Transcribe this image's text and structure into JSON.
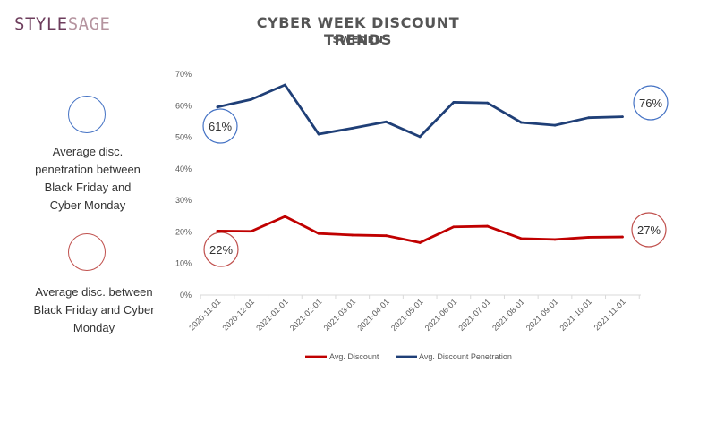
{
  "logo": {
    "part1": "STYLE",
    "part2": "SAGE"
  },
  "chart_data": {
    "type": "line",
    "title": "CYBER WEEK DISCOUNT TRENDS",
    "subtitle": "SWEDEN",
    "categories": [
      "2020-11-01",
      "2020-12-01",
      "2021-01-01",
      "2021-02-01",
      "2021-03-01",
      "2021-04-01",
      "2021-05-01",
      "2021-06-01",
      "2021-07-01",
      "2021-08-01",
      "2021-09-01",
      "2021-10-01",
      "2021-11-01"
    ],
    "ylim": [
      0,
      70
    ],
    "yticks": [
      "0%",
      "10%",
      "20%",
      "30%",
      "40%",
      "50%",
      "60%",
      "70%"
    ],
    "grid": false,
    "legend_placement": "bottom",
    "series": [
      {
        "name": "Avg. Discount",
        "color": "#c00000",
        "values": [
          20.3,
          20.2,
          24.9,
          19.5,
          19.0,
          18.8,
          16.6,
          21.6,
          21.8,
          17.9,
          17.6,
          18.3,
          18.4
        ]
      },
      {
        "name": "Avg. Discount Penetration",
        "color": "#1f3f77",
        "values": [
          59.6,
          62.0,
          66.6,
          51.0,
          52.9,
          54.9,
          50.2,
          61.1,
          60.9,
          54.7,
          53.8,
          56.2,
          56.5
        ]
      }
    ],
    "annotations": [
      {
        "text": "61%",
        "series": "Avg. Discount Penetration",
        "color": "#4472c4"
      },
      {
        "text": "76%",
        "series": "Avg. Discount Penetration",
        "color": "#4472c4"
      },
      {
        "text": "22%",
        "series": "Avg. Discount",
        "color": "#c0504d"
      },
      {
        "text": "27%",
        "series": "Avg. Discount",
        "color": "#c0504d"
      }
    ]
  },
  "side_legend": [
    {
      "text": "Average disc. penetration between Black Friday and Cyber Monday",
      "color": "#4472c4"
    },
    {
      "text": "Average disc. between Black Friday and Cyber Monday",
      "color": "#c0504d"
    }
  ]
}
